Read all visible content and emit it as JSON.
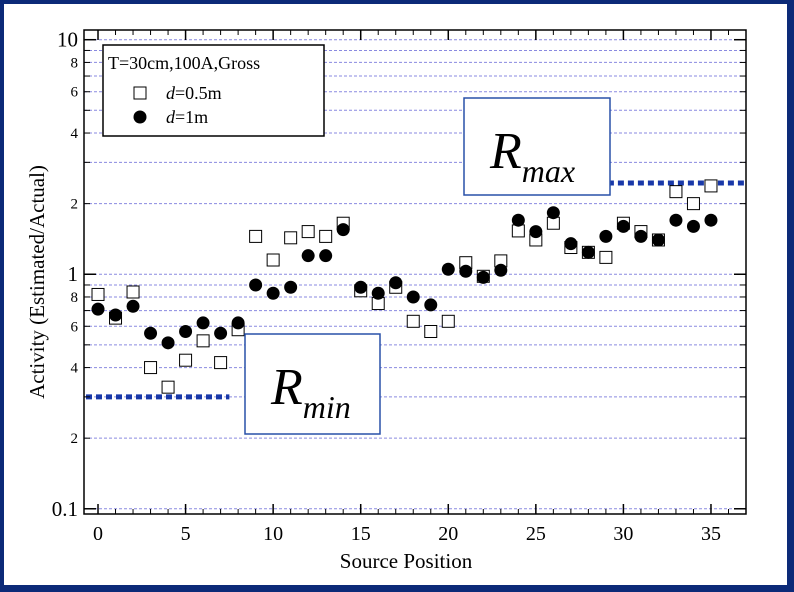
{
  "chart_data": {
    "type": "scatter",
    "xlabel": "Source Position",
    "ylabel": "Activity (Estimated/Actual)",
    "xlim": [
      -0.8,
      37
    ],
    "ylim": [
      0.095,
      11
    ],
    "y_scale": "log",
    "x_ticks": [
      0,
      5,
      10,
      15,
      20,
      25,
      30,
      35
    ],
    "y_major_ticks": [
      {
        "v": 0.1,
        "label": "0.1"
      },
      {
        "v": 1,
        "label": "1"
      },
      {
        "v": 10,
        "label": "10"
      }
    ],
    "y_minor_ticks": [
      {
        "v": 0.2,
        "label": "2"
      },
      {
        "v": 0.4,
        "label": "4"
      },
      {
        "v": 0.6,
        "label": "6"
      },
      {
        "v": 0.8,
        "label": "8"
      },
      {
        "v": 2,
        "label": "2"
      },
      {
        "v": 4,
        "label": "4"
      },
      {
        "v": 6,
        "label": "6"
      },
      {
        "v": 8,
        "label": "8"
      }
    ],
    "grid": "horizontal dashed",
    "legend": {
      "position": "top-left",
      "title": "T=30cm,100A,Gross",
      "entries": [
        {
          "symbol": "open-square",
          "prefix": "",
          "italic": "d",
          "suffix": "=0.5m"
        },
        {
          "symbol": "filled-circle",
          "prefix": "",
          "italic": "d",
          "suffix": "=1m"
        }
      ]
    },
    "series": [
      {
        "name": "d=0.5m",
        "marker": "open-square",
        "x": [
          0,
          1,
          2,
          3,
          4,
          5,
          6,
          7,
          8,
          9,
          10,
          11,
          12,
          13,
          14,
          15,
          16,
          17,
          18,
          19,
          20,
          21,
          22,
          23,
          24,
          25,
          26,
          27,
          28,
          29,
          30,
          31,
          32,
          33,
          34,
          35
        ],
        "y": [
          0.82,
          0.65,
          0.84,
          0.4,
          0.33,
          0.43,
          0.52,
          0.42,
          0.58,
          1.45,
          1.15,
          1.43,
          1.52,
          1.45,
          1.65,
          0.85,
          0.75,
          0.88,
          0.63,
          0.57,
          0.63,
          1.12,
          0.98,
          1.14,
          1.53,
          1.4,
          1.65,
          1.3,
          1.24,
          1.18,
          1.65,
          1.52,
          1.4,
          2.25,
          2.0,
          2.38
        ]
      },
      {
        "name": "d=1m",
        "marker": "filled-circle",
        "x": [
          0,
          1,
          2,
          3,
          4,
          5,
          6,
          7,
          8,
          9,
          10,
          11,
          12,
          13,
          14,
          15,
          16,
          17,
          18,
          19,
          20,
          21,
          22,
          23,
          24,
          25,
          26,
          27,
          28,
          29,
          30,
          31,
          32,
          33,
          34,
          35
        ],
        "y": [
          0.71,
          0.67,
          0.73,
          0.56,
          0.51,
          0.57,
          0.62,
          0.56,
          0.62,
          0.9,
          0.83,
          0.88,
          1.2,
          1.2,
          1.55,
          0.88,
          0.83,
          0.92,
          0.8,
          0.74,
          1.05,
          1.03,
          0.97,
          1.04,
          1.7,
          1.52,
          1.83,
          1.35,
          1.24,
          1.45,
          1.6,
          1.45,
          1.4,
          1.7,
          1.6,
          1.7
        ]
      }
    ],
    "annotations": [
      {
        "base": "R",
        "sub": "min",
        "line_value": 0.3,
        "line_x": [
          -0.8,
          7.5
        ],
        "line_color": "#1838a8"
      },
      {
        "base": "R",
        "sub": "max",
        "line_value": 2.45,
        "line_x": [
          29,
          37
        ],
        "line_color": "#1838a8"
      }
    ]
  }
}
